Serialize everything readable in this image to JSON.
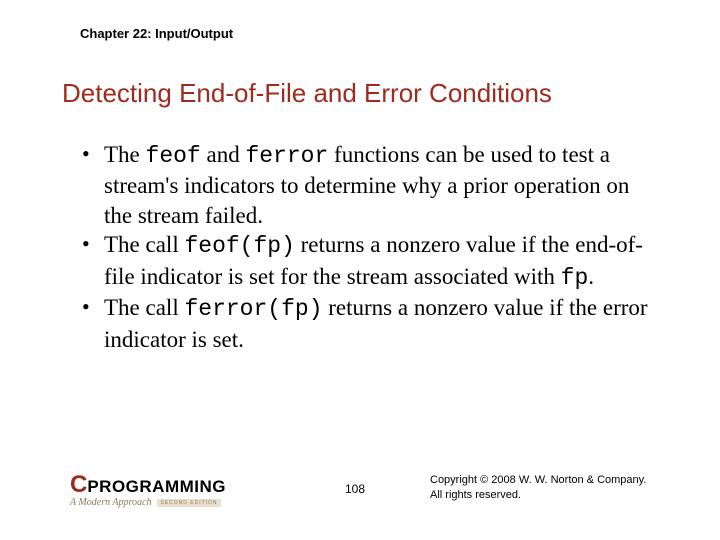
{
  "chapter": "Chapter 22: Input/Output",
  "title": "Detecting End-of-File and Error Conditions",
  "bullets": [
    {
      "pre": "The ",
      "c1": "feof",
      "mid1": " and ",
      "c2": "ferror",
      "post": " functions can be used to test a stream's indicators to determine why a prior operation on the stream failed."
    },
    {
      "pre": "The call ",
      "c1": "feof(fp)",
      "mid1": " returns a nonzero value if the end-of-file indicator is set for the stream associated with ",
      "c2": "fp",
      "post": "."
    },
    {
      "pre": "The call ",
      "c1": "ferror(fp)",
      "mid1": " returns a nonzero value if the error indicator is set.",
      "c2": "",
      "post": ""
    }
  ],
  "logo": {
    "c": "C",
    "prog": "PROGRAMMING",
    "approach": "A Modern Approach",
    "edition": "SECOND EDITION"
  },
  "page": "108",
  "copyright1": "Copyright © 2008 W. W. Norton & Company.",
  "copyright2": "All rights reserved."
}
